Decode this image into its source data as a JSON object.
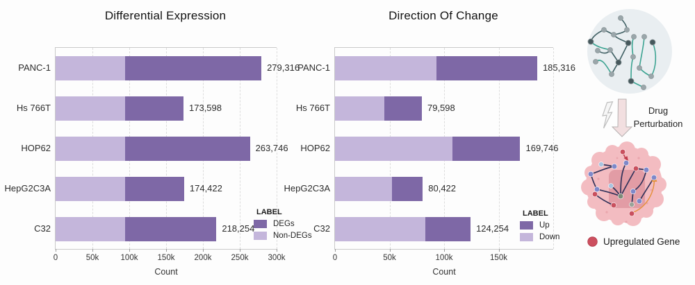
{
  "colors": {
    "dark_purple": "#7e68a6",
    "light_purple": "#c4b6db",
    "red_node": "#cc4f5f",
    "grid": "#dcdcdc",
    "axis_line": "#c9c9c9"
  },
  "chart_data": [
    {
      "type": "bar",
      "orientation": "horizontal",
      "stacked": true,
      "title": "Differential Expression",
      "xlabel": "Count",
      "categories": [
        "PANC-1",
        "Hs 766T",
        "HOP62",
        "HepG2C3A",
        "C32"
      ],
      "series": [
        {
          "name": "Non-DEGs",
          "color_key": "light_purple",
          "values": [
            94000,
            94000,
            94000,
            94000,
            94000
          ]
        },
        {
          "name": "DEGs",
          "color_key": "dark_purple",
          "values": [
            185316,
            79598,
            169746,
            80422,
            124254
          ]
        }
      ],
      "totals": [
        279316,
        173598,
        263746,
        174422,
        218254
      ],
      "total_labels": [
        "279,316",
        "173,598",
        "263,746",
        "174,422",
        "218,254"
      ],
      "xlim": [
        0,
        300000
      ],
      "xticks": [
        0,
        50000,
        100000,
        150000,
        200000,
        250000,
        300000
      ],
      "xtick_labels": [
        "0",
        "50k",
        "100k",
        "150k",
        "200k",
        "250k",
        "300k"
      ],
      "xgrid": [
        50000,
        100000,
        150000,
        200000,
        250000,
        300000
      ],
      "grid": "vertical-dashed",
      "legend": {
        "title": "LABEL",
        "position": "inside-bottom-right",
        "entries": [
          {
            "label": "DEGs",
            "color_key": "dark_purple"
          },
          {
            "label": "Non-DEGs",
            "color_key": "light_purple"
          }
        ]
      }
    },
    {
      "type": "bar",
      "orientation": "horizontal",
      "stacked": true,
      "title": "Direction Of Change",
      "xlabel": "Count",
      "categories": [
        "PANC-1",
        "Hs 766T",
        "HOP62",
        "HepG2C3A",
        "C32"
      ],
      "series": [
        {
          "name": "Down",
          "color_key": "light_purple",
          "values": [
            93000,
            45000,
            107500,
            52500,
            83000
          ]
        },
        {
          "name": "Up",
          "color_key": "dark_purple",
          "values": [
            92316,
            34598,
            62246,
            27922,
            41254
          ]
        }
      ],
      "totals": [
        185316,
        79598,
        169746,
        80422,
        124254
      ],
      "total_labels": [
        "185,316",
        "79,598",
        "169,746",
        "80,422",
        "124,254"
      ],
      "xlim": [
        0,
        200000
      ],
      "xticks": [
        0,
        50000,
        100000,
        150000
      ],
      "xtick_labels": [
        "0",
        "50k",
        "100k",
        "150k"
      ],
      "xgrid": [
        50000,
        100000,
        150000,
        200000
      ],
      "grid": "vertical-dashed",
      "legend": {
        "title": "LABEL",
        "position": "inside-bottom-right",
        "entries": [
          {
            "label": "Up",
            "color_key": "dark_purple"
          },
          {
            "label": "Down",
            "color_key": "light_purple"
          }
        ]
      }
    }
  ],
  "illustration": {
    "drug_label": {
      "line1": "Drug",
      "line2": "Perturbation"
    },
    "upregulated_legend": "Upregulated Gene"
  }
}
